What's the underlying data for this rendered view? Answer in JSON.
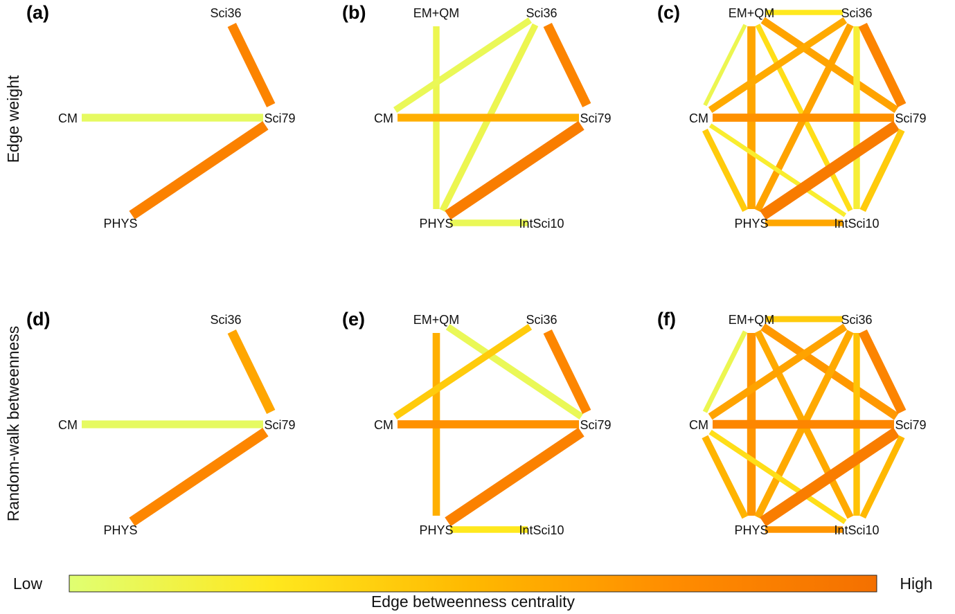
{
  "row_labels": [
    "Edge weight",
    "Random-walk betweenness"
  ],
  "colorbar": {
    "low_label": "Low",
    "high_label": "High",
    "title": "Edge betweenness centrality",
    "colors": [
      "#e0ff72",
      "#ffe81e",
      "#ffb800",
      "#ff8c00",
      "#f47000"
    ]
  },
  "nodes": [
    "EM+QM",
    "Sci36",
    "Sci79",
    "IntSci10",
    "PHYS",
    "CM"
  ],
  "panels": [
    {
      "label": "(a)",
      "nodes": [
        "Sci36",
        "Sci79",
        "PHYS",
        "CM"
      ],
      "edges": [
        {
          "source": "Sci36",
          "target": "Sci79",
          "weight": 0.8,
          "centrality": 0.82
        },
        {
          "source": "CM",
          "target": "Sci79",
          "weight": 0.6,
          "centrality": 0.05
        },
        {
          "source": "PHYS",
          "target": "Sci79",
          "weight": 0.9,
          "centrality": 0.85
        }
      ]
    },
    {
      "label": "(b)",
      "nodes": [
        "EM+QM",
        "Sci36",
        "Sci79",
        "IntSci10",
        "PHYS",
        "CM"
      ],
      "edges": [
        {
          "source": "EM+QM",
          "target": "PHYS",
          "weight": 0.45,
          "centrality": 0.1
        },
        {
          "source": "CM",
          "target": "Sci36",
          "weight": 0.45,
          "centrality": 0.08
        },
        {
          "source": "Sci36",
          "target": "PHYS",
          "weight": 0.45,
          "centrality": 0.1
        },
        {
          "source": "Sci36",
          "target": "Sci79",
          "weight": 0.8,
          "centrality": 0.82
        },
        {
          "source": "CM",
          "target": "Sci79",
          "weight": 0.6,
          "centrality": 0.55
        },
        {
          "source": "PHYS",
          "target": "Sci79",
          "weight": 0.95,
          "centrality": 0.88
        },
        {
          "source": "PHYS",
          "target": "IntSci10",
          "weight": 0.45,
          "centrality": 0.08
        }
      ]
    },
    {
      "label": "(c)",
      "nodes": [
        "EM+QM",
        "Sci36",
        "Sci79",
        "IntSci10",
        "PHYS",
        "CM"
      ],
      "edges": [
        {
          "source": "EM+QM",
          "target": "Sci36",
          "weight": 0.3,
          "centrality": 0.25
        },
        {
          "source": "EM+QM",
          "target": "CM",
          "weight": 0.15,
          "centrality": 0.1
        },
        {
          "source": "EM+QM",
          "target": "PHYS",
          "weight": 0.65,
          "centrality": 0.6
        },
        {
          "source": "EM+QM",
          "target": "Sci79",
          "weight": 0.55,
          "centrality": 0.62
        },
        {
          "source": "EM+QM",
          "target": "IntSci10",
          "weight": 0.3,
          "centrality": 0.3
        },
        {
          "source": "Sci36",
          "target": "CM",
          "weight": 0.5,
          "centrality": 0.58
        },
        {
          "source": "Sci36",
          "target": "PHYS",
          "weight": 0.5,
          "centrality": 0.62
        },
        {
          "source": "Sci36",
          "target": "IntSci10",
          "weight": 0.45,
          "centrality": 0.18
        },
        {
          "source": "Sci36",
          "target": "Sci79",
          "weight": 0.8,
          "centrality": 0.82
        },
        {
          "source": "CM",
          "target": "Sci79",
          "weight": 0.65,
          "centrality": 0.72
        },
        {
          "source": "CM",
          "target": "IntSci10",
          "weight": 0.2,
          "centrality": 0.2
        },
        {
          "source": "CM",
          "target": "PHYS",
          "weight": 0.4,
          "centrality": 0.4
        },
        {
          "source": "Sci79",
          "target": "PHYS",
          "weight": 1.0,
          "centrality": 0.9
        },
        {
          "source": "Sci79",
          "target": "IntSci10",
          "weight": 0.45,
          "centrality": 0.4
        },
        {
          "source": "PHYS",
          "target": "IntSci10",
          "weight": 0.45,
          "centrality": 0.6
        }
      ]
    },
    {
      "label": "(d)",
      "nodes": [
        "Sci36",
        "Sci79",
        "PHYS",
        "CM"
      ],
      "edges": [
        {
          "source": "Sci36",
          "target": "Sci79",
          "weight": 0.8,
          "centrality": 0.6
        },
        {
          "source": "CM",
          "target": "Sci79",
          "weight": 0.6,
          "centrality": 0.05
        },
        {
          "source": "PHYS",
          "target": "Sci79",
          "weight": 0.9,
          "centrality": 0.8
        }
      ]
    },
    {
      "label": "(e)",
      "nodes": [
        "EM+QM",
        "Sci36",
        "Sci79",
        "IntSci10",
        "PHYS",
        "CM"
      ],
      "edges": [
        {
          "source": "EM+QM",
          "target": "PHYS",
          "weight": 0.55,
          "centrality": 0.55
        },
        {
          "source": "EM+QM",
          "target": "Sci79",
          "weight": 0.5,
          "centrality": 0.08
        },
        {
          "source": "CM",
          "target": "Sci36",
          "weight": 0.5,
          "centrality": 0.4
        },
        {
          "source": "Sci36",
          "target": "Sci79",
          "weight": 0.8,
          "centrality": 0.8
        },
        {
          "source": "CM",
          "target": "Sci79",
          "weight": 0.65,
          "centrality": 0.72
        },
        {
          "source": "PHYS",
          "target": "Sci79",
          "weight": 0.95,
          "centrality": 0.85
        },
        {
          "source": "PHYS",
          "target": "IntSci10",
          "weight": 0.45,
          "centrality": 0.25
        }
      ]
    },
    {
      "label": "(f)",
      "nodes": [
        "EM+QM",
        "Sci36",
        "Sci79",
        "IntSci10",
        "PHYS",
        "CM"
      ],
      "edges": [
        {
          "source": "EM+QM",
          "target": "Sci36",
          "weight": 0.4,
          "centrality": 0.4
        },
        {
          "source": "EM+QM",
          "target": "CM",
          "weight": 0.25,
          "centrality": 0.1
        },
        {
          "source": "EM+QM",
          "target": "PHYS",
          "weight": 0.7,
          "centrality": 0.7
        },
        {
          "source": "EM+QM",
          "target": "Sci79",
          "weight": 0.65,
          "centrality": 0.68
        },
        {
          "source": "EM+QM",
          "target": "IntSci10",
          "weight": 0.5,
          "centrality": 0.58
        },
        {
          "source": "Sci36",
          "target": "CM",
          "weight": 0.55,
          "centrality": 0.62
        },
        {
          "source": "Sci36",
          "target": "PHYS",
          "weight": 0.55,
          "centrality": 0.58
        },
        {
          "source": "Sci36",
          "target": "IntSci10",
          "weight": 0.45,
          "centrality": 0.45
        },
        {
          "source": "Sci36",
          "target": "Sci79",
          "weight": 0.8,
          "centrality": 0.82
        },
        {
          "source": "CM",
          "target": "Sci79",
          "weight": 0.7,
          "centrality": 0.8
        },
        {
          "source": "CM",
          "target": "IntSci10",
          "weight": 0.3,
          "centrality": 0.3
        },
        {
          "source": "CM",
          "target": "PHYS",
          "weight": 0.5,
          "centrality": 0.52
        },
        {
          "source": "Sci79",
          "target": "PHYS",
          "weight": 1.0,
          "centrality": 0.88
        },
        {
          "source": "Sci79",
          "target": "IntSci10",
          "weight": 0.45,
          "centrality": 0.5
        },
        {
          "source": "PHYS",
          "target": "IntSci10",
          "weight": 0.45,
          "centrality": 0.7
        }
      ]
    }
  ]
}
